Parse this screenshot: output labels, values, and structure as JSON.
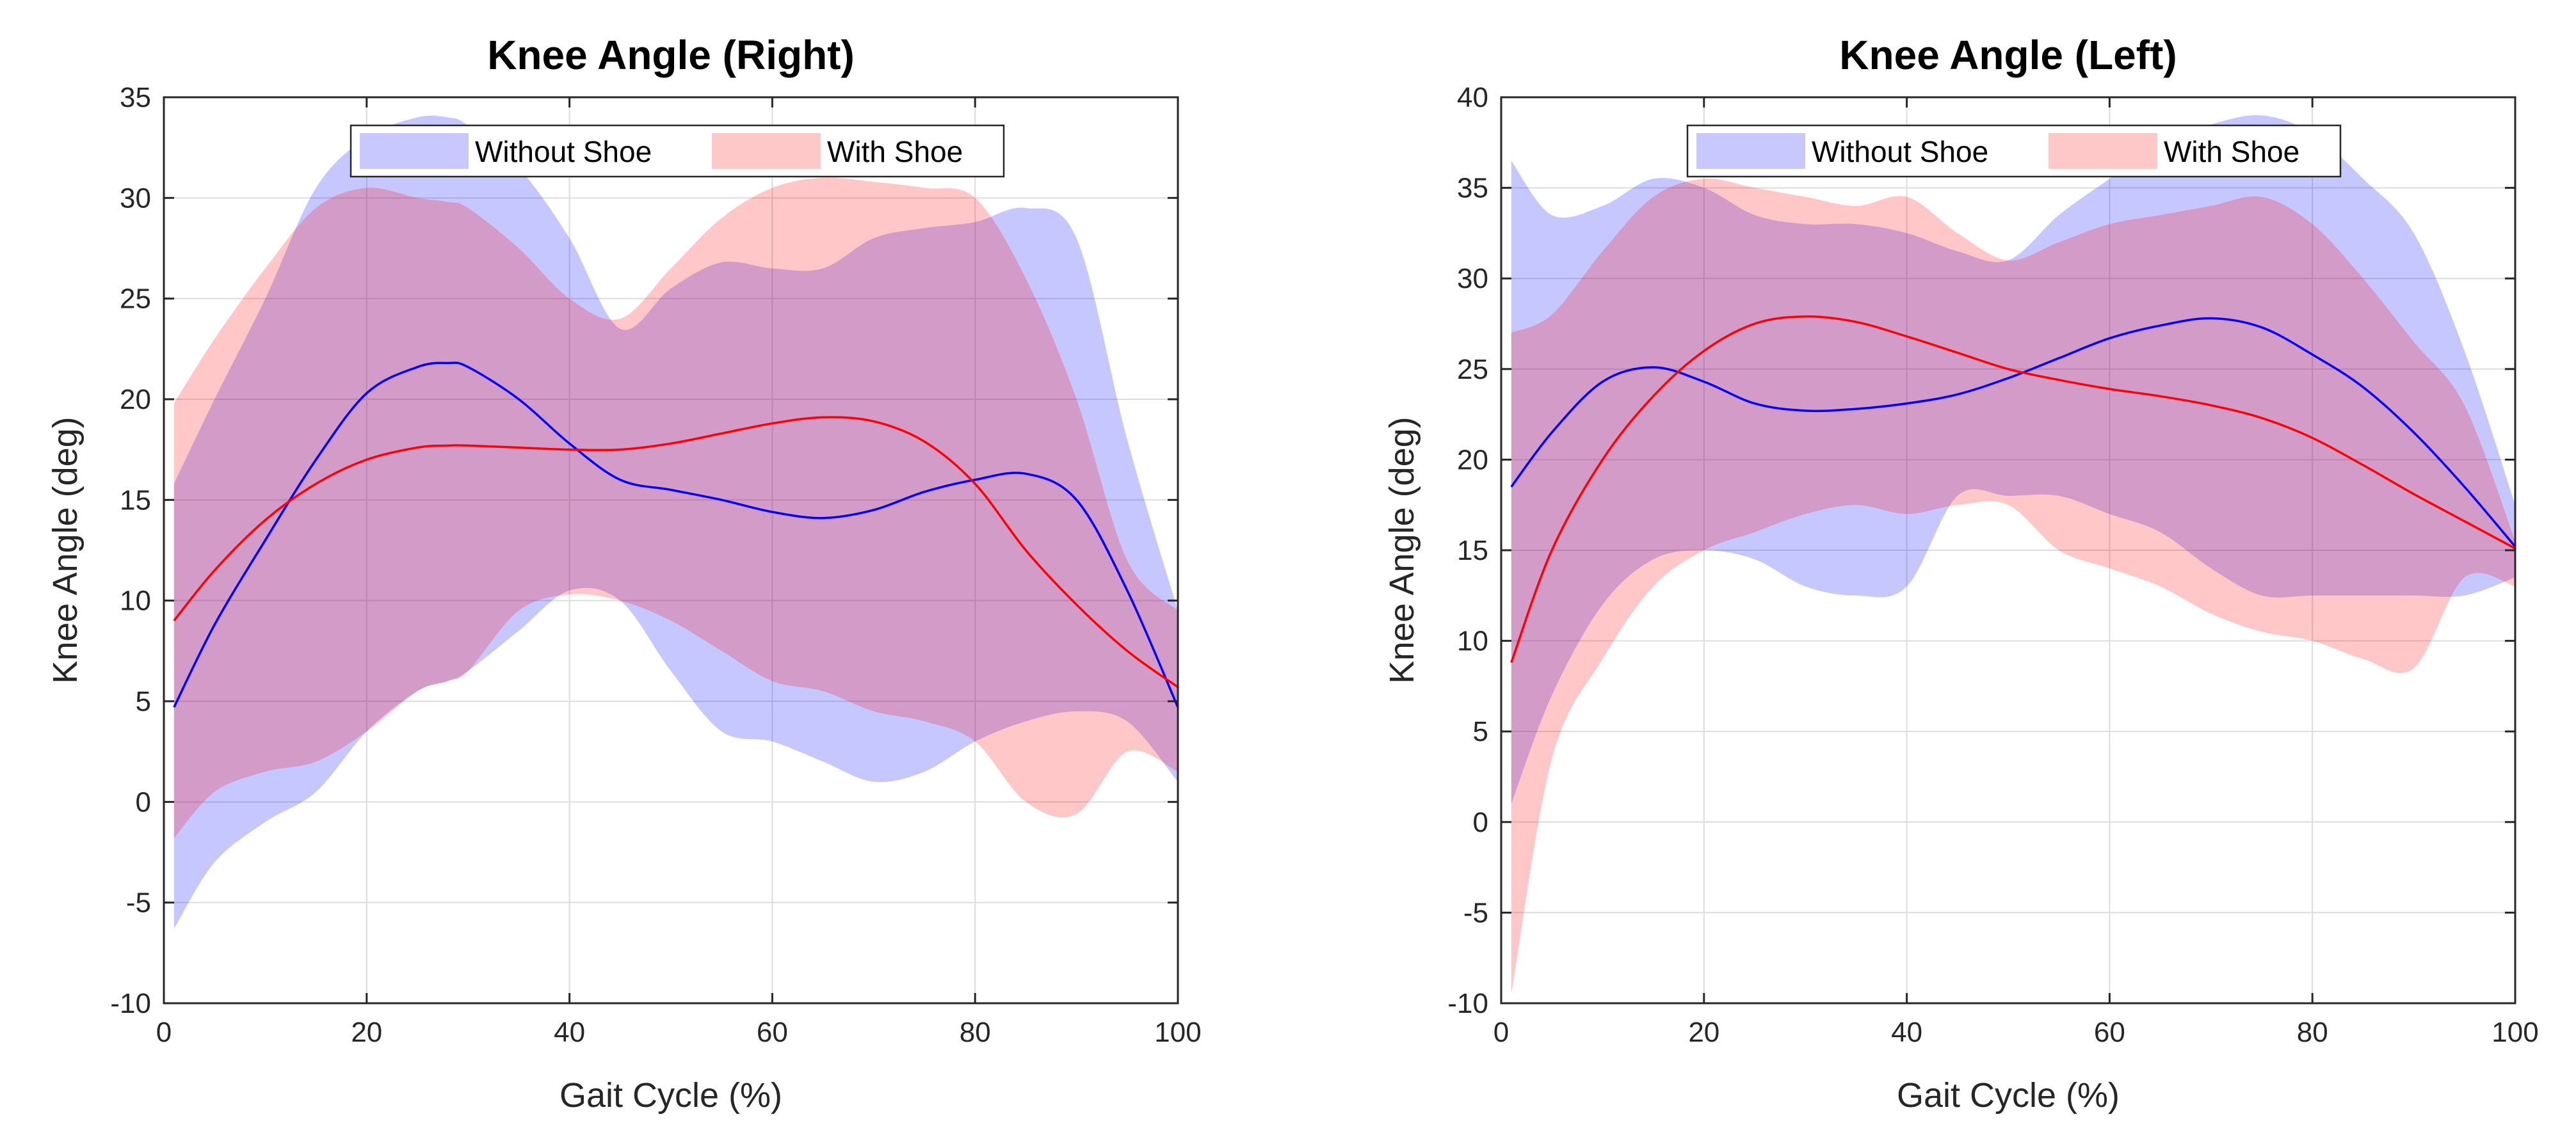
{
  "chart_data": [
    {
      "type": "line",
      "title": "Knee Angle (Right)",
      "xlabel": "Gait Cycle (%)",
      "ylabel": "Knee Angle (deg)",
      "xlim": [
        0,
        100
      ],
      "ylim": [
        -10,
        35
      ],
      "xticks": [
        0,
        20,
        40,
        60,
        80,
        100
      ],
      "yticks": [
        -10,
        -5,
        0,
        5,
        10,
        15,
        20,
        25,
        30,
        35
      ],
      "grid": true,
      "legend_position": "top-center",
      "x": [
        1,
        5,
        10,
        15,
        20,
        25,
        28,
        30,
        35,
        40,
        45,
        50,
        55,
        60,
        65,
        70,
        75,
        80,
        85,
        90,
        95,
        100
      ],
      "series": [
        {
          "name": "Without Shoe",
          "mean": [
            4.7,
            8.8,
            13.0,
            17.0,
            20.3,
            21.6,
            21.8,
            21.6,
            20.0,
            17.8,
            16.0,
            15.5,
            15.0,
            14.4,
            14.1,
            14.5,
            15.4,
            16.0,
            16.3,
            15.0,
            10.5,
            4.7
          ],
          "upper": [
            15.8,
            20.0,
            25.0,
            30.5,
            33.0,
            34.0,
            34.0,
            33.6,
            31.5,
            28.0,
            23.5,
            25.5,
            26.8,
            26.5,
            26.5,
            28.0,
            28.5,
            28.8,
            29.5,
            28.0,
            18.0,
            9.5
          ],
          "lower": [
            -6.3,
            -3.0,
            -1.0,
            0.5,
            3.5,
            5.5,
            6.0,
            6.5,
            8.5,
            10.5,
            10.0,
            6.5,
            3.5,
            3.0,
            2.0,
            1.0,
            1.5,
            3.0,
            4.0,
            4.5,
            4.0,
            1.0
          ],
          "color": "#0000ff",
          "fill": "#c8c8ff"
        },
        {
          "name": "With Shoe",
          "mean": [
            9.0,
            11.5,
            14.0,
            15.8,
            17.0,
            17.6,
            17.7,
            17.7,
            17.6,
            17.5,
            17.5,
            17.8,
            18.3,
            18.8,
            19.1,
            18.9,
            17.9,
            15.8,
            12.5,
            9.8,
            7.5,
            5.7
          ],
          "upper": [
            19.8,
            23.0,
            26.5,
            29.5,
            30.5,
            30.0,
            29.8,
            29.5,
            27.5,
            25.0,
            24.0,
            26.5,
            29.0,
            30.5,
            31.0,
            30.8,
            30.5,
            30.0,
            26.0,
            20.0,
            12.0,
            9.5
          ],
          "lower": [
            -1.8,
            0.5,
            1.5,
            2.0,
            3.5,
            5.5,
            6.0,
            6.5,
            9.5,
            10.3,
            10.0,
            9.0,
            7.5,
            6.0,
            5.5,
            4.5,
            4.0,
            3.0,
            0.0,
            -0.6,
            2.5,
            1.5
          ],
          "color": "#ff0000",
          "fill": "#ffc8c8"
        }
      ]
    },
    {
      "type": "line",
      "title": "Knee Angle (Left)",
      "xlabel": "Gait Cycle (%)",
      "ylabel": "Knee Angle (deg)",
      "xlim": [
        0,
        100
      ],
      "ylim": [
        -10,
        40
      ],
      "xticks": [
        0,
        20,
        40,
        60,
        80,
        100
      ],
      "yticks": [
        -10,
        -5,
        0,
        5,
        10,
        15,
        20,
        25,
        30,
        35,
        40
      ],
      "grid": true,
      "legend_position": "top-center",
      "x": [
        1,
        5,
        10,
        15,
        20,
        25,
        30,
        35,
        40,
        45,
        50,
        55,
        60,
        65,
        70,
        75,
        80,
        85,
        90,
        95,
        100
      ],
      "series": [
        {
          "name": "Without Shoe",
          "mean": [
            18.5,
            21.5,
            24.3,
            25.1,
            24.3,
            23.1,
            22.7,
            22.8,
            23.1,
            23.6,
            24.5,
            25.6,
            26.7,
            27.4,
            27.8,
            27.3,
            25.8,
            24.0,
            21.5,
            18.5,
            15.2
          ],
          "upper": [
            36.5,
            33.5,
            34.0,
            35.5,
            35.0,
            33.5,
            33.0,
            33.0,
            32.5,
            31.5,
            31.0,
            33.5,
            35.5,
            37.5,
            38.5,
            39.0,
            38.0,
            35.5,
            32.5,
            26.0,
            17.5
          ],
          "lower": [
            1.0,
            7.0,
            12.0,
            14.5,
            15.0,
            14.5,
            13.0,
            12.5,
            13.0,
            18.0,
            18.0,
            18.0,
            17.0,
            16.0,
            14.0,
            12.5,
            12.5,
            12.5,
            12.5,
            12.5,
            13.5
          ],
          "color": "#0000ff",
          "fill": "#c8c8ff"
        },
        {
          "name": "With Shoe",
          "mean": [
            8.8,
            15.0,
            20.0,
            23.5,
            26.0,
            27.5,
            27.9,
            27.6,
            26.8,
            25.9,
            25.0,
            24.4,
            23.9,
            23.5,
            23.0,
            22.3,
            21.2,
            19.7,
            18.1,
            16.6,
            15.1
          ],
          "upper": [
            27.0,
            28.0,
            31.5,
            34.5,
            35.5,
            35.0,
            34.5,
            34.0,
            34.5,
            32.5,
            31.0,
            32.0,
            33.0,
            33.5,
            34.0,
            34.5,
            33.0,
            30.0,
            26.5,
            23.0,
            15.5
          ],
          "lower": [
            -9.5,
            3.5,
            9.0,
            13.0,
            15.0,
            16.0,
            17.0,
            17.5,
            17.0,
            17.5,
            17.5,
            15.0,
            14.0,
            13.0,
            11.5,
            10.5,
            10.0,
            9.0,
            8.5,
            13.5,
            13.0
          ],
          "color": "#ff0000",
          "fill": "#ffc8c8"
        }
      ]
    }
  ]
}
